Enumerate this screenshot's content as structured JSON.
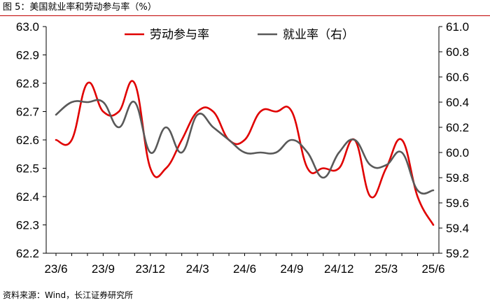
{
  "header": {
    "title": "图 5：美国就业率和劳动参与率（%）"
  },
  "footer": {
    "source": "资料来源：Wind，长江证券研究所"
  },
  "colors": {
    "lfpr": "#e00000",
    "emp": "#595959",
    "rule": "#c00000"
  },
  "chart_data": {
    "type": "line",
    "title": "美国就业率和劳动参与率（%）",
    "xlabel": "",
    "ylabel": "",
    "x": [
      "23/6",
      "23/7",
      "23/8",
      "23/9",
      "23/10",
      "23/11",
      "23/12",
      "24/1",
      "24/2",
      "24/3",
      "24/4",
      "24/5",
      "24/6",
      "24/7",
      "24/8",
      "24/9",
      "24/10",
      "24/11",
      "24/12",
      "25/1",
      "25/2",
      "25/3",
      "25/4",
      "25/5",
      "25/6"
    ],
    "x_tick_labels": [
      "23/6",
      "23/9",
      "23/12",
      "24/3",
      "24/6",
      "24/9",
      "24/12",
      "25/3",
      "25/6"
    ],
    "y_left": {
      "lim": [
        62.2,
        63.0
      ],
      "ticks": [
        "62.2",
        "62.3",
        "62.4",
        "62.5",
        "62.6",
        "62.7",
        "62.8",
        "62.9",
        "63.0"
      ]
    },
    "y_right": {
      "lim": [
        59.2,
        61.0
      ],
      "ticks": [
        "59.2",
        "59.4",
        "59.6",
        "59.8",
        "60.0",
        "60.2",
        "60.4",
        "60.6",
        "60.8",
        "61.0"
      ]
    },
    "legend": {
      "position": "top-center"
    },
    "grid": false,
    "series": [
      {
        "name": "劳动参与率",
        "axis": "left",
        "color": "#e00000",
        "values": [
          62.6,
          62.6,
          62.8,
          62.7,
          62.7,
          62.8,
          62.5,
          62.5,
          62.6,
          62.7,
          62.7,
          62.6,
          62.6,
          62.7,
          62.7,
          62.7,
          62.5,
          62.5,
          62.5,
          62.6,
          62.4,
          62.5,
          62.6,
          62.4,
          62.3
        ]
      },
      {
        "name": "就业率（右）",
        "axis": "right",
        "color": "#595959",
        "values": [
          60.3,
          60.4,
          60.4,
          60.4,
          60.2,
          60.4,
          60.0,
          60.2,
          60.0,
          60.3,
          60.2,
          60.1,
          60.0,
          60.0,
          60.0,
          60.1,
          60.0,
          59.8,
          60.0,
          60.1,
          59.9,
          59.9,
          60.0,
          59.7,
          59.7
        ]
      }
    ]
  }
}
